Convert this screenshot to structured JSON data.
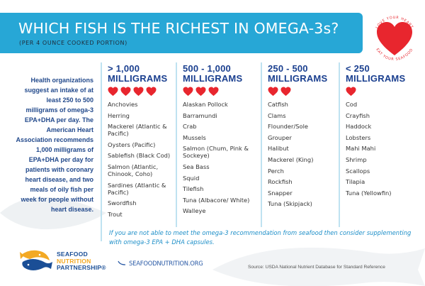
{
  "header": {
    "title": "WHICH FISH IS THE RICHEST IN OMEGA-3s?",
    "subtitle": "(PER 4 OUNCE COOKED PORTION)",
    "banner_color": "#27a7d6"
  },
  "badge": {
    "top_text": "LOVE YOUR HEART",
    "bottom_text": "EAT YOUR SEAFOOD",
    "heart_color": "#e8262e"
  },
  "intro": {
    "text": "Health organizations suggest an intake of at least 250 to 500 milligrams of omega-3 EPA+DHA per day. The American Heart Association recommends 1,000 milligrams of EPA+DHA per day for patients with coronary heart disease, and two meals of oily fish per week for people without heart disease."
  },
  "columns": [
    {
      "heading_line1": "> 1,000",
      "heading_line2": "MILLIGRAMS",
      "hearts": 4,
      "items": [
        "Anchovies",
        "Herring",
        "Mackerel (Atlantic & Pacific)",
        "Oysters (Pacific)",
        "Sablefish (Black Cod)",
        "Salmon (Atlantic, Chinook, Coho)",
        "Sardines (Atlantic & Pacific)",
        "Swordfish",
        "Trout"
      ]
    },
    {
      "heading_line1": "500 - 1,000",
      "heading_line2": "MILLIGRAMS",
      "hearts": 3,
      "items": [
        "Alaskan Pollock",
        "Barramundi",
        "Crab",
        "Mussels",
        "Salmon (Chum, Pink & Sockeye)",
        "Sea Bass",
        "Squid",
        "Tilefish",
        "Tuna (Albacore/ White)",
        "Walleye"
      ]
    },
    {
      "heading_line1": "250 - 500",
      "heading_line2": "MILLIGRAMS",
      "hearts": 2,
      "items": [
        "Catfish",
        "Clams",
        "Flounder/Sole",
        "Grouper",
        "Halibut",
        "Mackerel (King)",
        "Perch",
        "Rockfish",
        "Snapper",
        "Tuna (Skipjack)"
      ]
    },
    {
      "heading_line1": "< 250",
      "heading_line2": "MILLIGRAMS",
      "hearts": 1,
      "items": [
        "Cod",
        "Crayfish",
        "Haddock",
        "Lobsters",
        "Mahi Mahi",
        "Shrimp",
        "Scallops",
        "Tilapia",
        "Tuna (Yellowfin)"
      ]
    }
  ],
  "note": {
    "text": "If you are not able to meet the omega-3 recommendation from seafood then consider supplementing with omega-3 EPA + DHA capsules."
  },
  "footer": {
    "logo_line1": "SEAFOOD",
    "logo_line2": "NUTRITION",
    "logo_line3": "PARTNERSHIP®",
    "url": "SEAFOODNUTRITION.ORG",
    "source": "Source: USDA National Nutrient Database for Standard Reference"
  },
  "colors": {
    "heading_blue": "#1a3f8f",
    "accent_light_blue": "#27a7d6",
    "heart_red": "#e8262e",
    "logo_orange": "#f3a924"
  }
}
